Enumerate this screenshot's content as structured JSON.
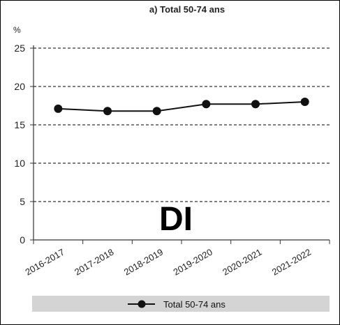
{
  "chart_data": {
    "type": "line",
    "title": "a) Total 50-74 ans",
    "ylabel": "%",
    "xlabel": "",
    "categories": [
      "2016-2017",
      "2017-2018",
      "2018-2019",
      "2019-2020",
      "2020-2021",
      "2021-2022"
    ],
    "yticks": [
      "0",
      "5",
      "10",
      "15",
      "20",
      "25"
    ],
    "ylim": [
      0,
      25
    ],
    "grid": "horizontal-dashed",
    "legend_position": "bottom",
    "series": [
      {
        "name": "Total 50-74 ans",
        "values": [
          17.1,
          16.8,
          16.8,
          17.7,
          17.7,
          18.0
        ]
      }
    ],
    "series_color": "#111111",
    "annotation": "DI"
  }
}
